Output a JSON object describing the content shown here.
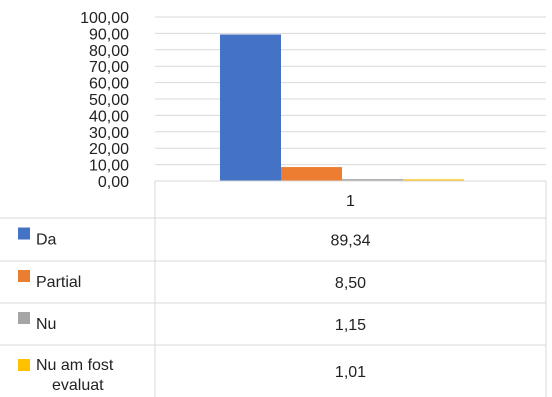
{
  "chart_data": {
    "type": "bar",
    "categories": [
      "1"
    ],
    "series": [
      {
        "name": "Da",
        "values": [
          89.34
        ],
        "color": "#4472C4"
      },
      {
        "name": "Partial",
        "values": [
          8.5
        ],
        "color": "#ED7D31"
      },
      {
        "name": "Nu",
        "values": [
          1.15
        ],
        "color": "#A5A5A5"
      },
      {
        "name": "Nu am fost evaluat",
        "values": [
          1.01
        ],
        "color": "#FFC000"
      }
    ],
    "value_labels": [
      "89,34",
      "8,50",
      "1,15",
      "1,01"
    ],
    "y_tick_labels": [
      "0,00",
      "10,00",
      "20,00",
      "30,00",
      "40,00",
      "50,00",
      "60,00",
      "70,00",
      "80,00",
      "90,00",
      "100,00"
    ],
    "ylim": [
      0,
      100
    ],
    "grid": true,
    "legend": "data-table"
  }
}
